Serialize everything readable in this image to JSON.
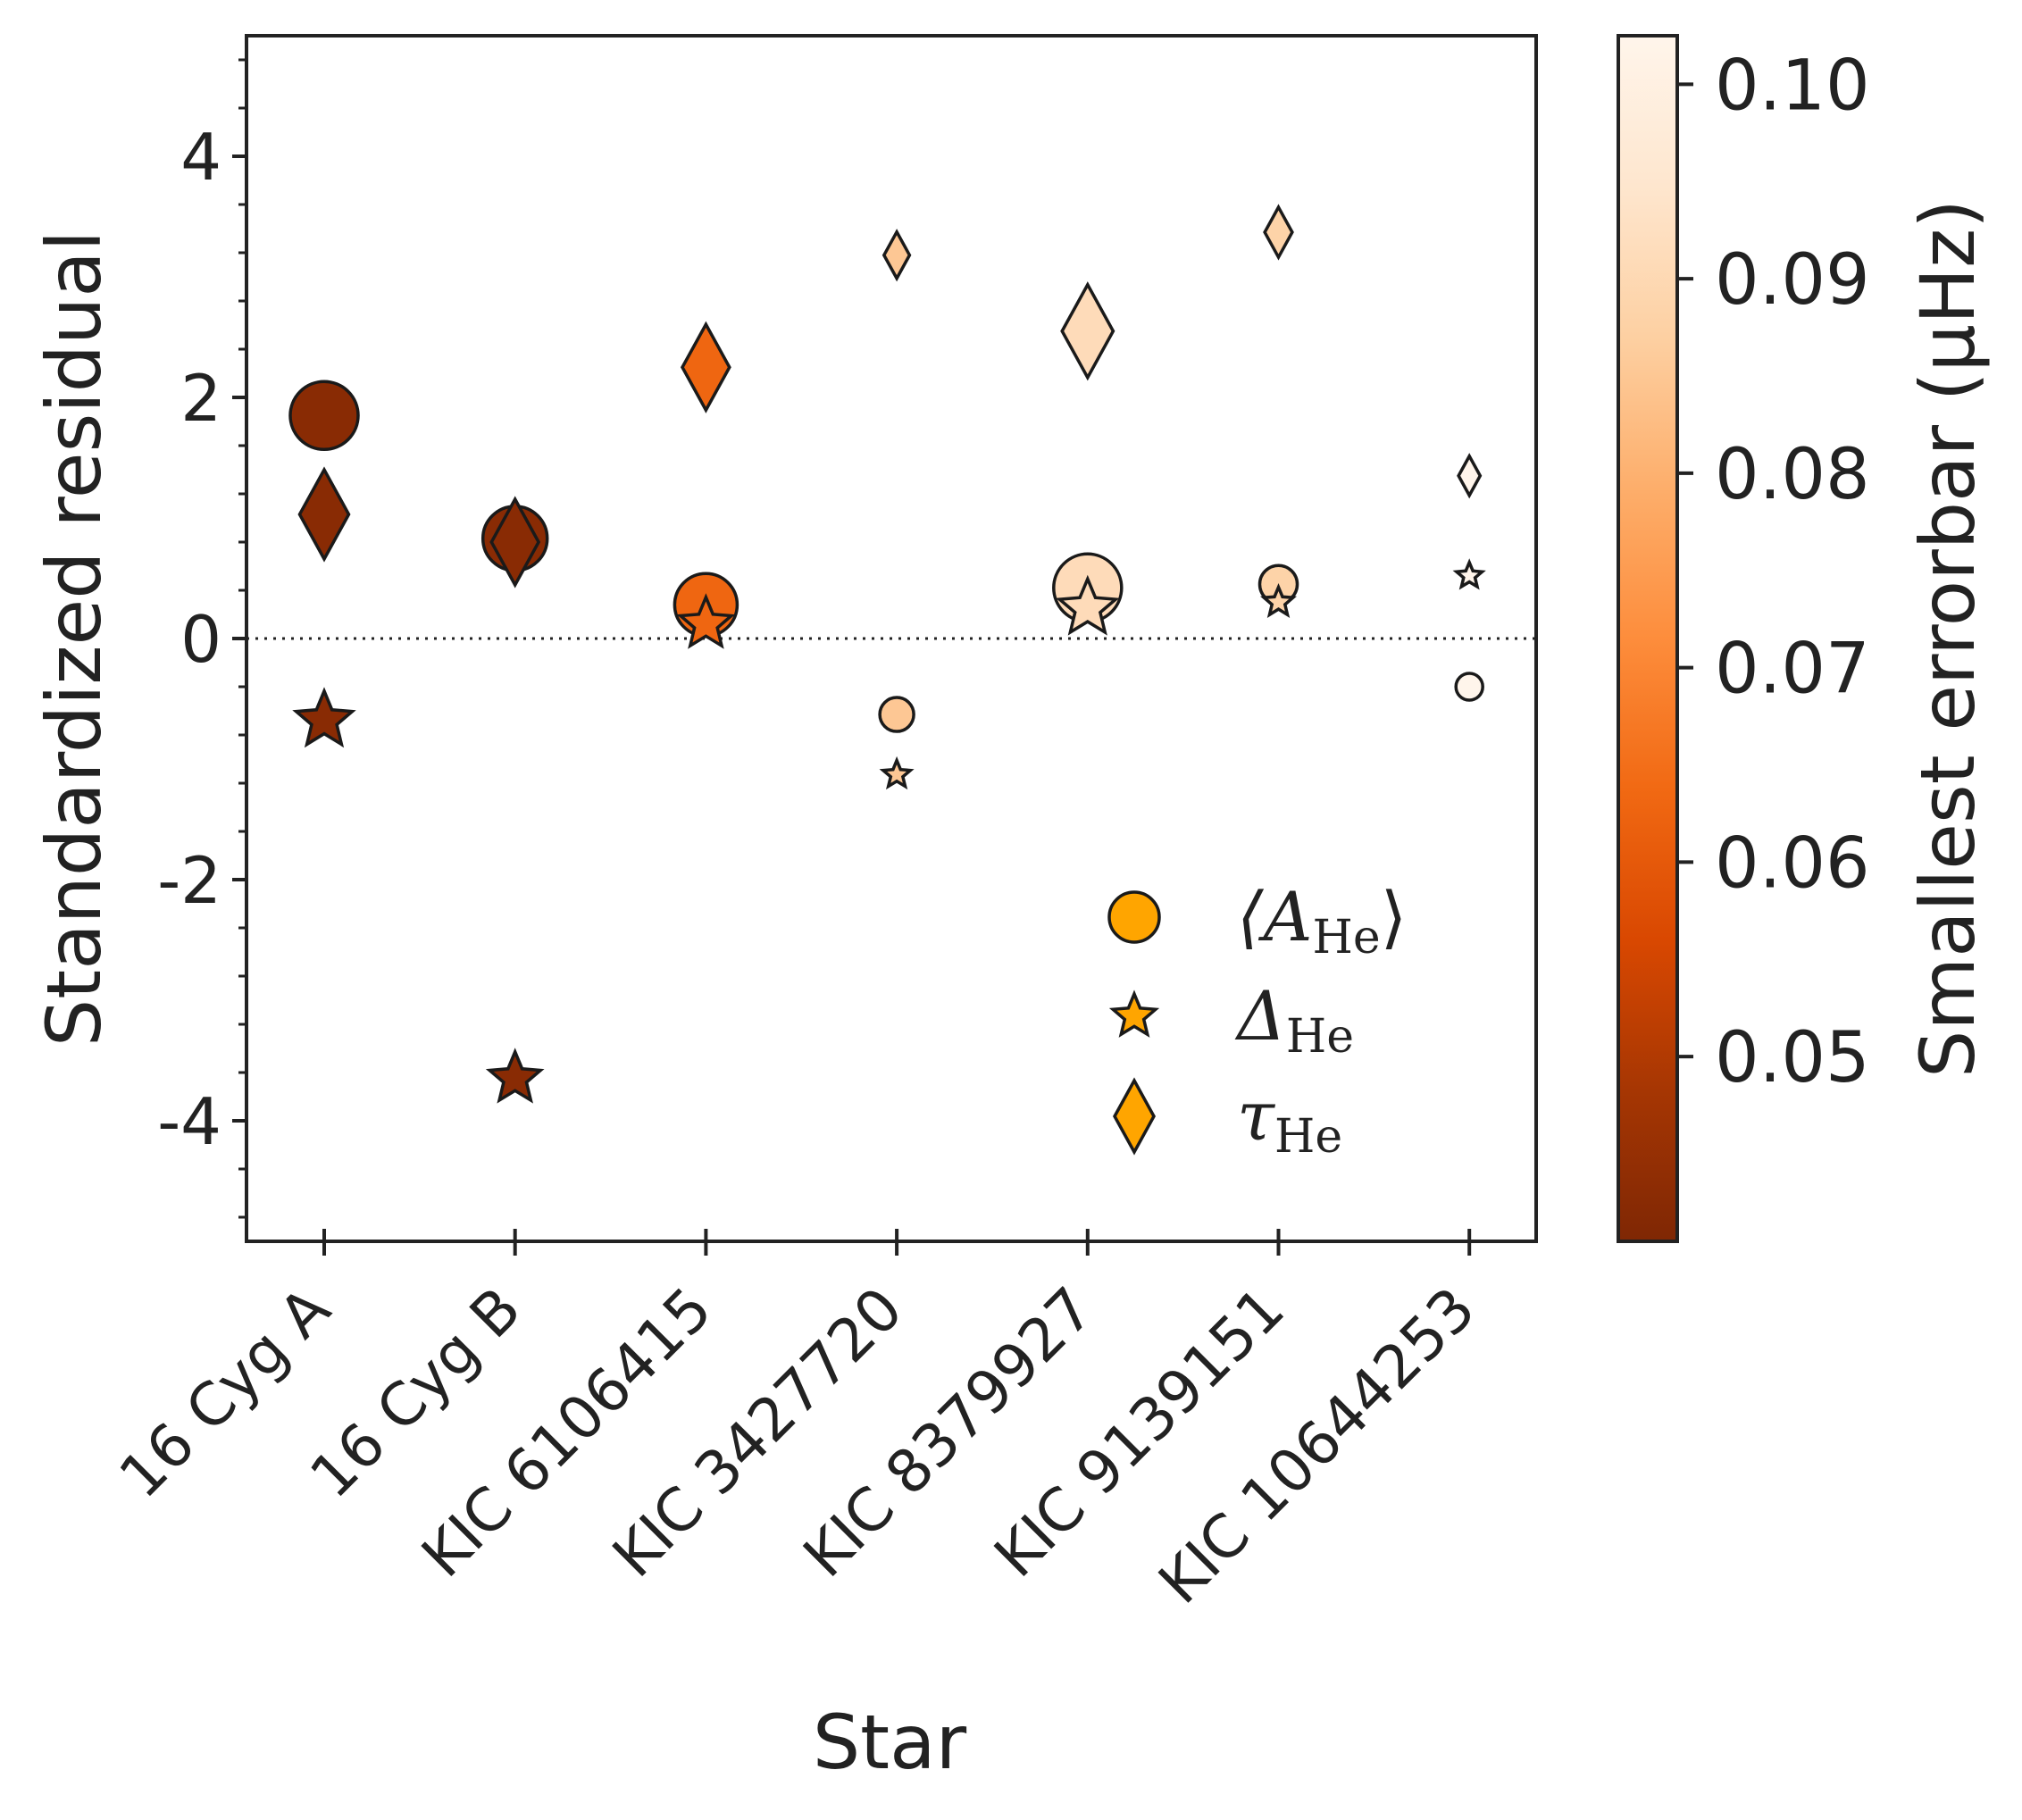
{
  "chart_data": {
    "type": "scatter",
    "title": "",
    "xlabel": "Star",
    "ylabel": "Standardized residual",
    "ylim": [
      -5,
      5
    ],
    "yticks": [
      4,
      2,
      0,
      -2,
      -4
    ],
    "ytick_labels": [
      "4",
      "2",
      "0",
      "-2",
      "-4"
    ],
    "reference_line_y": 0,
    "categories": [
      "16 Cyg A",
      "16 Cyg B",
      "KIC 6106415",
      "KIC 3427720",
      "KIC 8379927",
      "KIC 9139151",
      "KIC 10644253"
    ],
    "colorbar": {
      "label": "Smallest errorbar (μHz)",
      "range": [
        0.0405,
        0.1025
      ],
      "ticks": [
        0.05,
        0.06,
        0.07,
        0.08,
        0.09,
        0.1
      ],
      "tick_labels": [
        "0.05",
        "0.06",
        "0.07",
        "0.08",
        "0.09",
        "0.10"
      ],
      "colormap": "Oranges_r",
      "stops": [
        "#7f2704",
        "#a63603",
        "#d94801",
        "#f16913",
        "#fd8d3c",
        "#fdae6b",
        "#fdd0a2",
        "#fee6ce",
        "#fff5eb"
      ]
    },
    "legend": {
      "position": "lower-right",
      "face_color": "#ffa500",
      "entries": [
        {
          "key": "A",
          "label_main": "⟨A",
          "label_sub": "He",
          "label_end": "⟩",
          "marker": "circle"
        },
        {
          "key": "delta",
          "label_main": "Δ",
          "label_sub": "He",
          "label_end": "",
          "marker": "star"
        },
        {
          "key": "tau",
          "label_main": "τ",
          "label_sub": "He",
          "label_end": "",
          "marker": "diamond"
        }
      ]
    },
    "series": [
      {
        "name": "A_He",
        "marker": "circle",
        "values": [
          1.85,
          0.83,
          0.28,
          -0.63,
          0.42,
          0.45,
          -0.4
        ],
        "sizes": [
          38,
          36,
          35,
          19,
          38,
          21,
          15
        ]
      },
      {
        "name": "Delta_He",
        "marker": "star",
        "values": [
          -0.68,
          -3.65,
          0.12,
          -1.13,
          0.25,
          0.3,
          0.52
        ],
        "sizes": [
          33,
          30,
          30,
          16,
          33,
          17,
          15
        ]
      },
      {
        "name": "tau_He",
        "marker": "diamond",
        "values": [
          1.03,
          0.8,
          2.25,
          3.18,
          2.55,
          3.37,
          1.35
        ],
        "sizes": [
          50,
          48,
          48,
          26,
          52,
          28,
          22
        ]
      }
    ],
    "star_errorbars": [
      0.0425,
      0.0425,
      0.063,
      0.085,
      0.091,
      0.088,
      0.103
    ]
  }
}
